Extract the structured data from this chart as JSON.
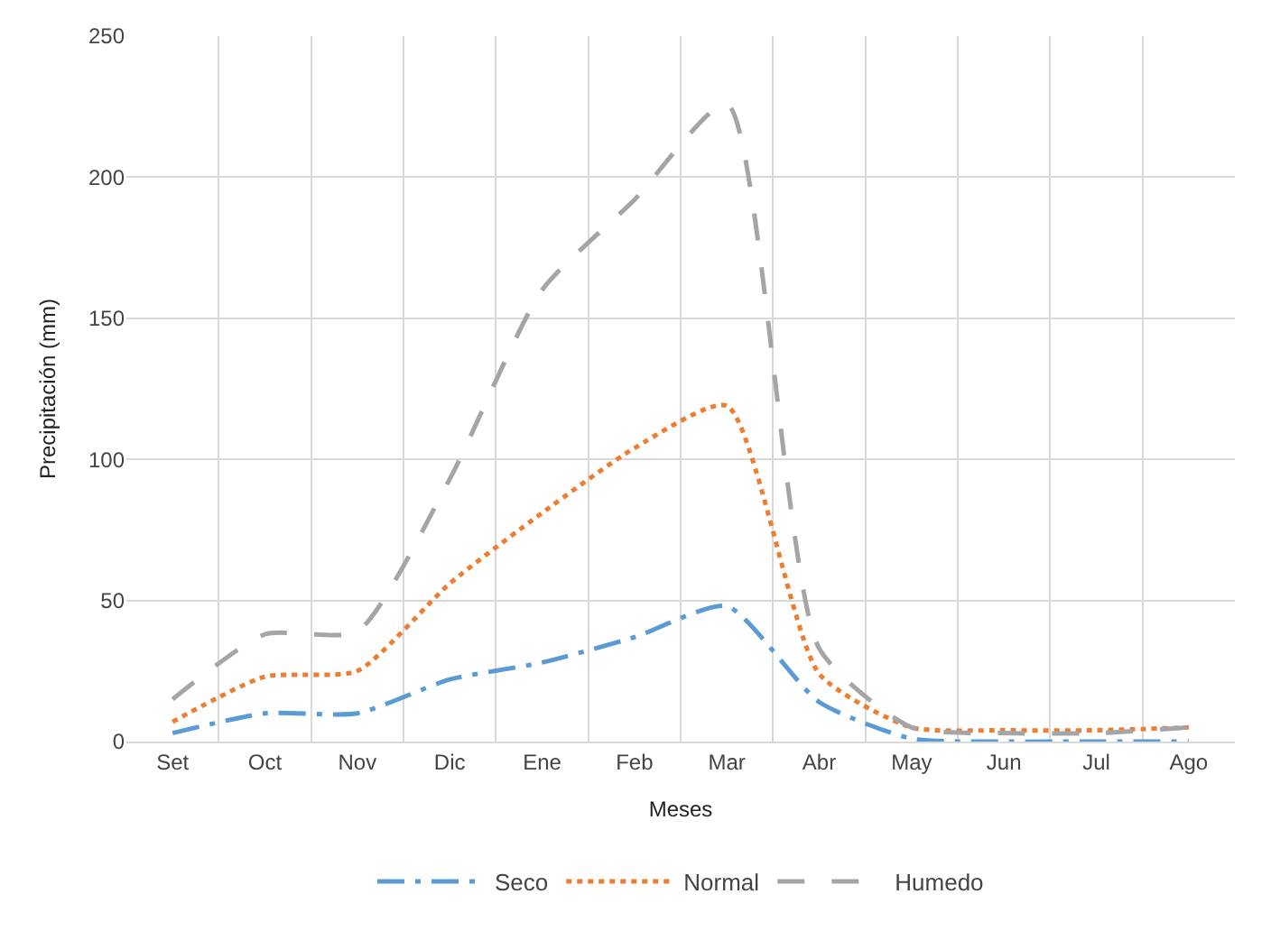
{
  "chart_data": {
    "type": "line",
    "xlabel": "Meses",
    "ylabel": "Precipitación (mm)",
    "categories": [
      "Set",
      "Oct",
      "Nov",
      "Dic",
      "Ene",
      "Feb",
      "Mar",
      "Abr",
      "May",
      "Jun",
      "Jul",
      "Ago"
    ],
    "series": [
      {
        "name": "Seco",
        "color": "#5b9bd5",
        "line_style": "dashdot",
        "values": [
          3,
          10,
          10,
          22,
          28,
          37,
          48,
          14,
          1,
          0,
          0,
          0
        ]
      },
      {
        "name": "Normal",
        "color": "#ed7d31",
        "line_style": "dotted",
        "values": [
          7,
          23,
          25,
          56,
          81,
          104,
          119,
          24,
          5,
          4,
          4,
          5
        ]
      },
      {
        "name": "Humedo",
        "color": "#a5a5a5",
        "line_style": "dashed",
        "values": [
          15,
          38,
          39,
          93,
          160,
          192,
          226,
          33,
          5,
          3,
          3,
          5
        ]
      }
    ],
    "ylim": [
      0,
      250
    ],
    "yticks": [
      0,
      50,
      100,
      150,
      200,
      250
    ],
    "grid": true,
    "legend": "bottom",
    "marker": "none"
  }
}
